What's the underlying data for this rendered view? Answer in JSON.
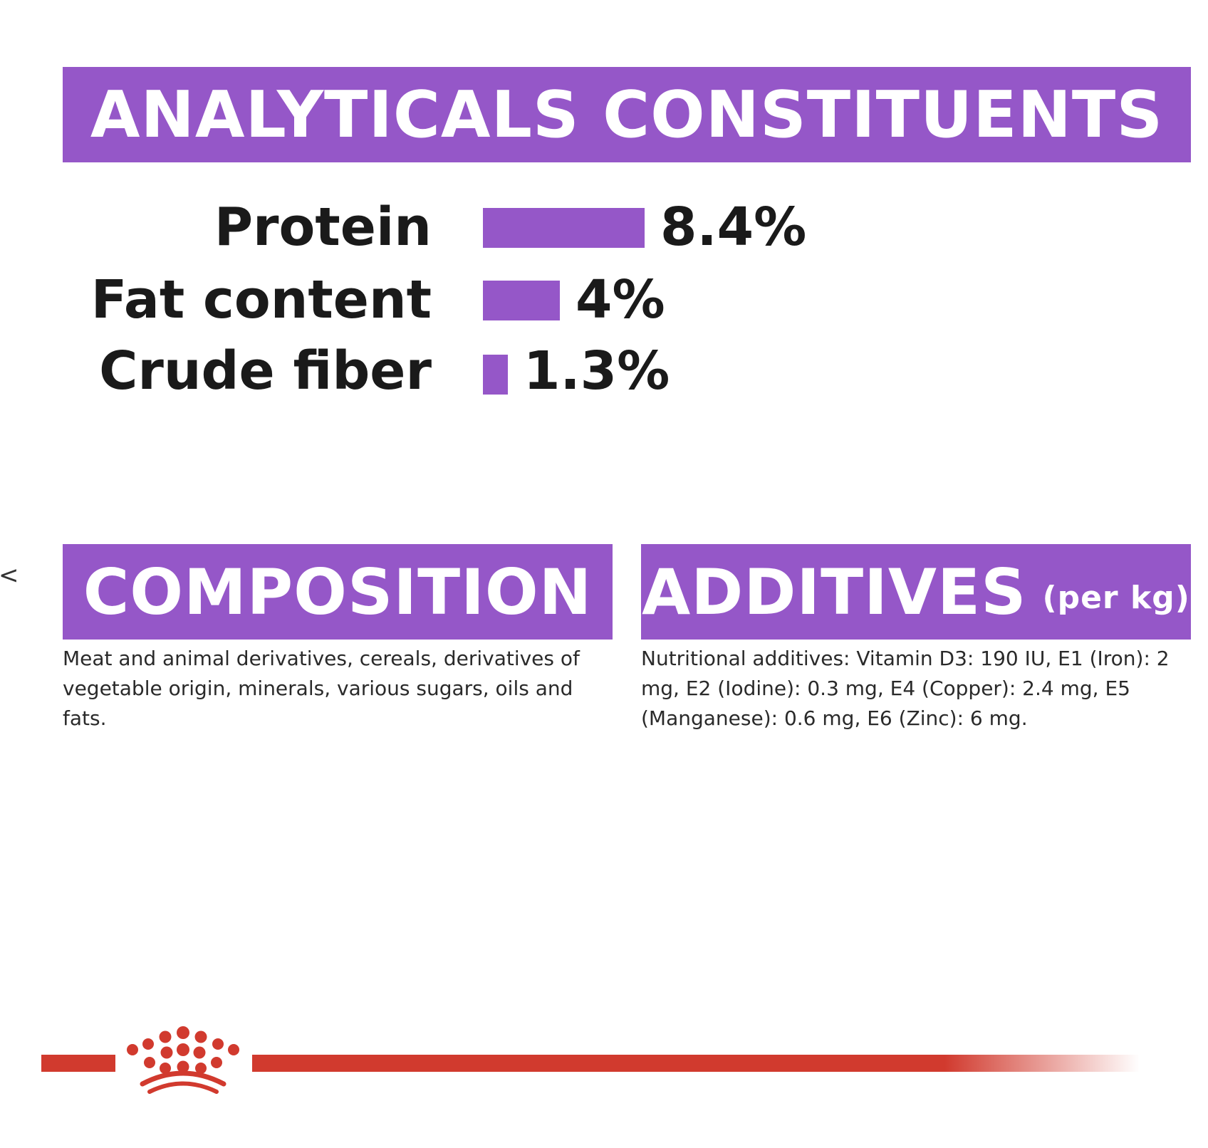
{
  "colors": {
    "accent_purple": "#9557c8",
    "brand_red": "#d13a2e",
    "text_dark": "#1a1a1a"
  },
  "analytical": {
    "title": "ANALYTICALS CONSTITUENTS",
    "items": [
      {
        "label": "Protein",
        "value_text": "8.4%",
        "value": 8.4
      },
      {
        "label": "Fat content",
        "value_text": "4%",
        "value": 4
      },
      {
        "label": "Crude fiber",
        "value_text": "1.3%",
        "value": 1.3
      }
    ]
  },
  "composition": {
    "title": "COMPOSITION",
    "text": "Meat and animal derivatives, cereals, derivatives of vegetable origin, minerals, various sugars, oils and fats."
  },
  "additives": {
    "title": "ADDITIVES",
    "title_suffix": "(per kg)",
    "text": "Nutritional additives: Vitamin D3: 190 IU, E1 (Iron): 2 mg, E2 (Iodine): 0.3 mg, E4 (Copper): 2.4 mg, E5 (Manganese): 0.6 mg, E6 (Zinc): 6 mg."
  },
  "side_mark": "<",
  "footer": {
    "logo_icon": "crown-icon"
  }
}
